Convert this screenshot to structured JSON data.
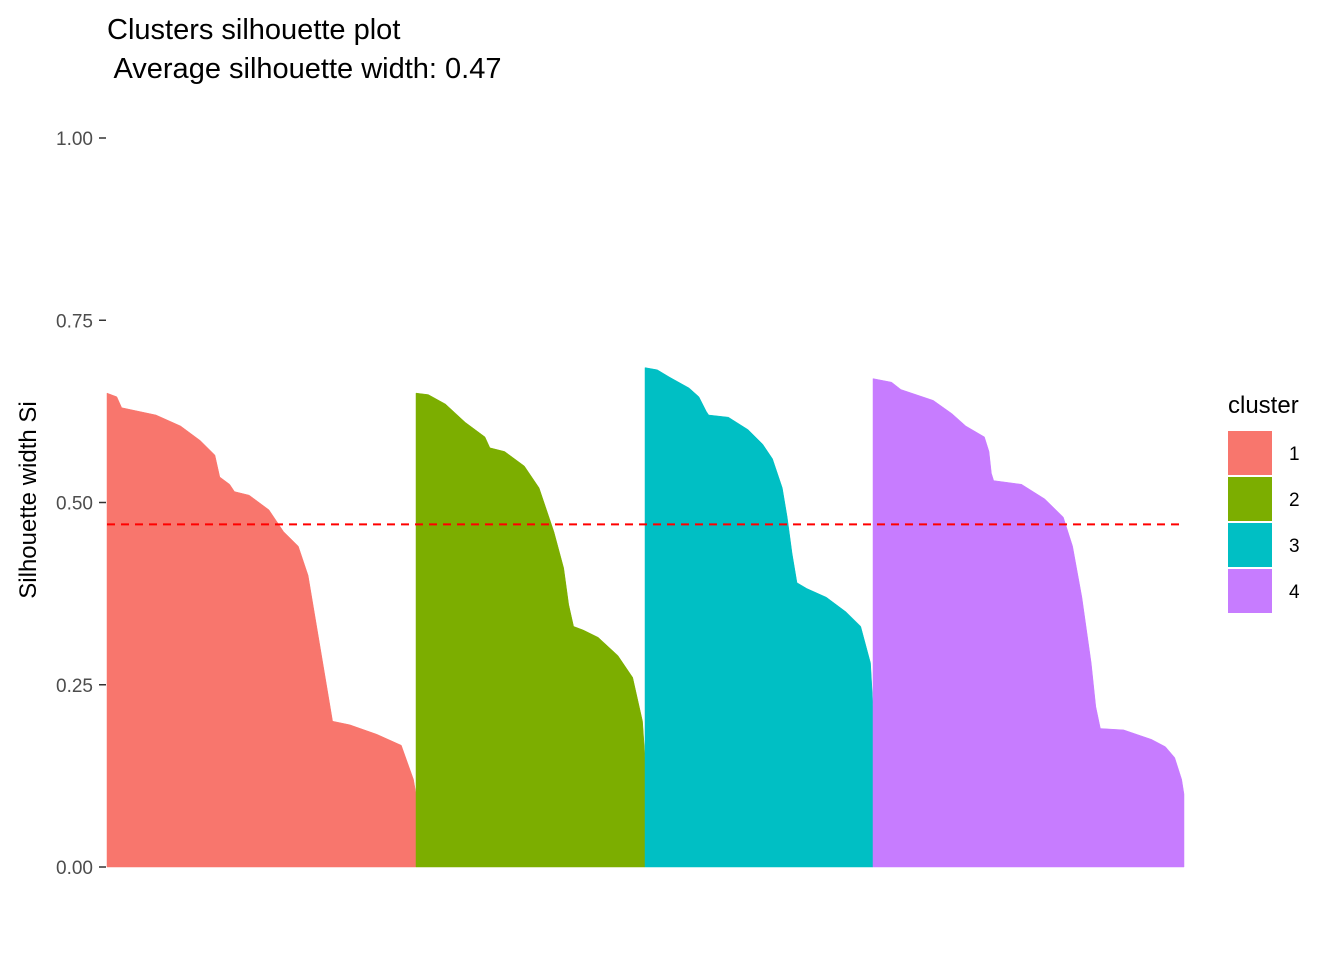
{
  "chart_data": {
    "type": "area",
    "title": "Clusters silhouette plot",
    "subtitle": " Average silhouette width: 0.47",
    "xlabel": "",
    "ylabel": "Silhouette width Si",
    "ylim": [
      0,
      1
    ],
    "y_ticks": [
      "0.00",
      "0.25",
      "0.50",
      "0.75",
      "1.00"
    ],
    "grid": false,
    "average_line": {
      "value": 0.47,
      "color": "#ff0000",
      "style": "dashed"
    },
    "legend": {
      "title": "cluster",
      "placement": "right"
    },
    "series": [
      {
        "name": "1",
        "color": "#F8766D",
        "points": [
          [
            0,
            0.65
          ],
          [
            0.04,
            0.645
          ],
          [
            0.06,
            0.63
          ],
          [
            0.2,
            0.62
          ],
          [
            0.3,
            0.605
          ],
          [
            0.38,
            0.585
          ],
          [
            0.44,
            0.565
          ],
          [
            0.46,
            0.535
          ],
          [
            0.5,
            0.525
          ],
          [
            0.52,
            0.515
          ],
          [
            0.58,
            0.51
          ],
          [
            0.66,
            0.49
          ],
          [
            0.72,
            0.46
          ],
          [
            0.78,
            0.44
          ],
          [
            0.82,
            0.4
          ],
          [
            0.86,
            0.32
          ],
          [
            0.9,
            0.24
          ],
          [
            0.92,
            0.2
          ],
          [
            0.99,
            0.195
          ],
          [
            1.1,
            0.182
          ],
          [
            1.2,
            0.167
          ],
          [
            1.25,
            0.12
          ],
          [
            1.26,
            0.1
          ]
        ]
      },
      {
        "name": "2",
        "color": "#7CAE00",
        "points": [
          [
            0,
            0.65
          ],
          [
            0.05,
            0.648
          ],
          [
            0.12,
            0.635
          ],
          [
            0.2,
            0.61
          ],
          [
            0.28,
            0.59
          ],
          [
            0.3,
            0.575
          ],
          [
            0.36,
            0.57
          ],
          [
            0.44,
            0.55
          ],
          [
            0.5,
            0.52
          ],
          [
            0.56,
            0.46
          ],
          [
            0.6,
            0.41
          ],
          [
            0.62,
            0.36
          ],
          [
            0.64,
            0.33
          ],
          [
            0.68,
            0.325
          ],
          [
            0.74,
            0.315
          ],
          [
            0.82,
            0.29
          ],
          [
            0.88,
            0.26
          ],
          [
            0.92,
            0.2
          ],
          [
            0.93,
            0.15
          ]
        ]
      },
      {
        "name": "3",
        "color": "#00BFC4",
        "points": [
          [
            0,
            0.685
          ],
          [
            0.05,
            0.682
          ],
          [
            0.1,
            0.672
          ],
          [
            0.18,
            0.657
          ],
          [
            0.22,
            0.645
          ],
          [
            0.25,
            0.625
          ],
          [
            0.26,
            0.62
          ],
          [
            0.34,
            0.617
          ],
          [
            0.42,
            0.6
          ],
          [
            0.48,
            0.58
          ],
          [
            0.52,
            0.56
          ],
          [
            0.56,
            0.52
          ],
          [
            0.58,
            0.48
          ],
          [
            0.6,
            0.43
          ],
          [
            0.62,
            0.39
          ],
          [
            0.66,
            0.382
          ],
          [
            0.74,
            0.37
          ],
          [
            0.82,
            0.35
          ],
          [
            0.88,
            0.33
          ],
          [
            0.92,
            0.28
          ],
          [
            0.93,
            0.22
          ]
        ]
      },
      {
        "name": "4",
        "color": "#C77CFF",
        "points": [
          [
            0,
            0.67
          ],
          [
            0.08,
            0.665
          ],
          [
            0.12,
            0.655
          ],
          [
            0.26,
            0.64
          ],
          [
            0.34,
            0.622
          ],
          [
            0.4,
            0.605
          ],
          [
            0.48,
            0.59
          ],
          [
            0.5,
            0.57
          ],
          [
            0.51,
            0.54
          ],
          [
            0.52,
            0.53
          ],
          [
            0.64,
            0.525
          ],
          [
            0.74,
            0.505
          ],
          [
            0.82,
            0.48
          ],
          [
            0.86,
            0.44
          ],
          [
            0.9,
            0.37
          ],
          [
            0.94,
            0.28
          ],
          [
            0.96,
            0.22
          ],
          [
            0.98,
            0.19
          ],
          [
            1.08,
            0.188
          ],
          [
            1.2,
            0.175
          ],
          [
            1.26,
            0.165
          ],
          [
            1.3,
            0.15
          ],
          [
            1.33,
            0.12
          ],
          [
            1.34,
            0.1
          ]
        ]
      }
    ]
  }
}
